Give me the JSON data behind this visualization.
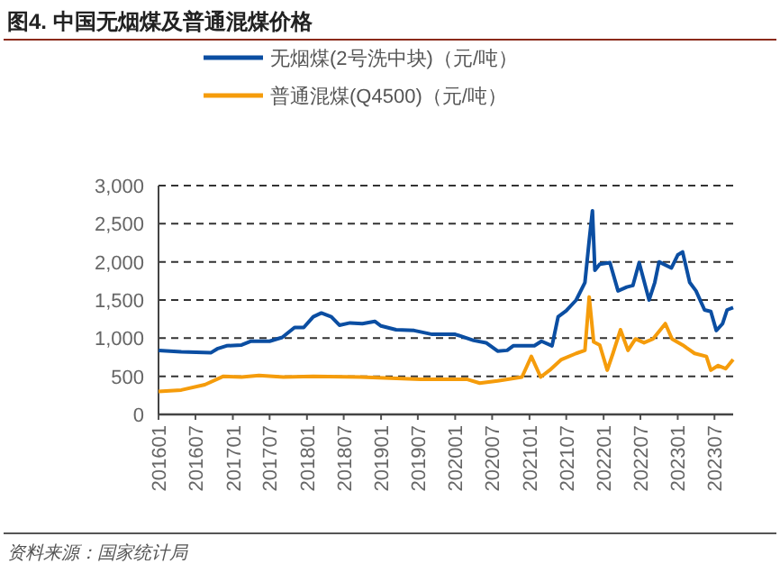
{
  "chart_data": {
    "type": "line",
    "title": "图4. 中国无烟煤及普通混煤价格",
    "annotations": [
      "资料来源：国家统计局"
    ],
    "legend": "top",
    "grid": "y",
    "line_style": "solid",
    "marker": "none",
    "xlim": [
      "2016-01",
      "2023-10"
    ],
    "xticks": [
      {
        "value": "2016-01",
        "label": "201601"
      },
      {
        "value": "2016-07",
        "label": "201607"
      },
      {
        "value": "2017-01",
        "label": "201701"
      },
      {
        "value": "2017-07",
        "label": "201707"
      },
      {
        "value": "2018-01",
        "label": "201801"
      },
      {
        "value": "2018-07",
        "label": "201807"
      },
      {
        "value": "2019-01",
        "label": "201901"
      },
      {
        "value": "2019-07",
        "label": "201907"
      },
      {
        "value": "2020-01",
        "label": "202001"
      },
      {
        "value": "2020-07",
        "label": "202007"
      },
      {
        "value": "2021-01",
        "label": "202101"
      },
      {
        "value": "2021-07",
        "label": "202107"
      },
      {
        "value": "2022-01",
        "label": "202201"
      },
      {
        "value": "2022-07",
        "label": "202207"
      },
      {
        "value": "2023-01",
        "label": "202301"
      },
      {
        "value": "2023-07",
        "label": "202307"
      }
    ],
    "ylim": [
      0,
      3000
    ],
    "yticks": [
      {
        "value": 0,
        "label": "0"
      },
      {
        "value": 500,
        "label": "500"
      },
      {
        "value": 1000,
        "label": "1,000"
      },
      {
        "value": 1500,
        "label": "1,500"
      },
      {
        "value": 2000,
        "label": "2,000"
      },
      {
        "value": 2500,
        "label": "2,500"
      },
      {
        "value": 3000,
        "label": "3,000"
      }
    ],
    "series": [
      {
        "name": "无烟煤(2号洗中块)（元/吨）",
        "color": "#0b4ea2",
        "x": [
          "2016-01-01",
          "2016-04-22",
          "2016-09-16",
          "2016-10-16",
          "2016-12-01",
          "2017-02-13",
          "2017-04-01",
          "2017-07-01",
          "2017-09-01",
          "2017-11-01",
          "2017-12-16",
          "2018-02-01",
          "2018-03-13",
          "2018-05-01",
          "2018-06-10",
          "2018-08-01",
          "2018-10-01",
          "2018-12-01",
          "2019-01-01",
          "2019-03-16",
          "2019-06-13",
          "2019-09-10",
          "2020-01-01",
          "2020-04-01",
          "2020-06-01",
          "2020-07-28",
          "2020-09-13",
          "2020-10-13",
          "2021-01-25",
          "2021-03-01",
          "2021-04-22",
          "2021-05-22",
          "2021-07-01",
          "2021-08-19",
          "2021-10-01",
          "2021-10-22",
          "2021-11-07",
          "2021-11-19",
          "2021-12-13",
          "2022-02-01",
          "2022-03-13",
          "2022-04-25",
          "2022-05-25",
          "2022-06-25",
          "2022-08-13",
          "2022-09-10",
          "2022-10-01",
          "2022-12-01",
          "2023-01-01",
          "2023-01-25",
          "2023-03-01",
          "2023-04-01",
          "2023-05-13",
          "2023-06-13",
          "2023-07-10",
          "2023-08-10",
          "2023-09-01",
          "2023-10-01"
        ],
        "values": [
          840,
          820,
          810,
          860,
          900,
          910,
          960,
          960,
          1010,
          1140,
          1140,
          1280,
          1330,
          1280,
          1170,
          1200,
          1190,
          1220,
          1160,
          1110,
          1100,
          1050,
          1050,
          970,
          940,
          830,
          840,
          900,
          900,
          960,
          900,
          1280,
          1360,
          1500,
          1730,
          2280,
          2670,
          1890,
          1970,
          1990,
          1620,
          1670,
          1690,
          1990,
          1500,
          1730,
          2000,
          1920,
          2090,
          2130,
          1730,
          1620,
          1370,
          1350,
          1100,
          1190,
          1370,
          1400
        ]
      },
      {
        "name": "普通混煤(Q4500)（元/吨）",
        "color": "#f59c0b",
        "x": [
          "2016-01-01",
          "2016-04-22",
          "2016-08-16",
          "2016-11-16",
          "2017-02-13",
          "2017-05-10",
          "2017-09-07",
          "2018-02-01",
          "2018-09-22",
          "2019-07-13",
          "2020-03-01",
          "2020-05-01",
          "2020-07-28",
          "2020-11-25",
          "2021-01-10",
          "2021-02-25",
          "2021-04-10",
          "2021-06-07",
          "2021-08-19",
          "2021-10-01",
          "2021-10-22",
          "2021-11-13",
          "2021-12-13",
          "2022-01-19",
          "2022-02-16",
          "2022-03-25",
          "2022-05-01",
          "2022-06-07",
          "2022-07-19",
          "2022-09-01",
          "2022-11-01",
          "2022-12-04",
          "2023-01-25",
          "2023-03-25",
          "2023-05-22",
          "2023-06-13",
          "2023-07-19",
          "2023-08-25",
          "2023-10-01"
        ],
        "values": [
          300,
          320,
          390,
          500,
          490,
          510,
          490,
          500,
          490,
          460,
          460,
          410,
          440,
          490,
          760,
          490,
          580,
          720,
          800,
          840,
          1540,
          950,
          910,
          580,
          800,
          1110,
          840,
          990,
          940,
          990,
          1190,
          990,
          910,
          800,
          760,
          580,
          640,
          600,
          720
        ]
      }
    ]
  }
}
